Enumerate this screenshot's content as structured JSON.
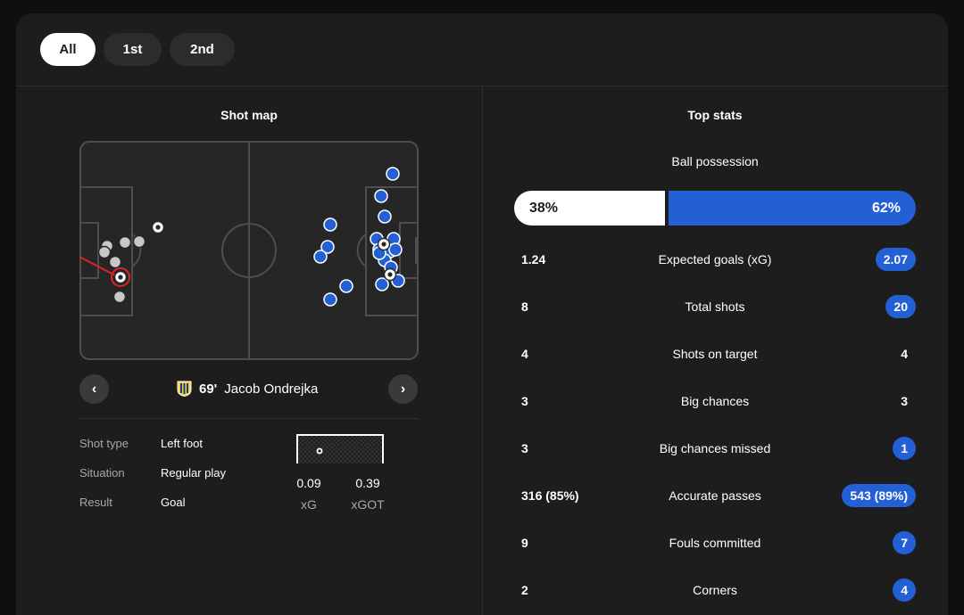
{
  "tabs": [
    {
      "label": "All",
      "active": true
    },
    {
      "label": "1st",
      "active": false
    },
    {
      "label": "2nd",
      "active": false
    }
  ],
  "shot_map": {
    "title": "Shot map",
    "selected_shot": {
      "minute": "69'",
      "player": "Jacob Ondrejka",
      "details": [
        {
          "label": "Shot type",
          "value": "Left foot"
        },
        {
          "label": "Situation",
          "value": "Regular play"
        },
        {
          "label": "Result",
          "value": "Goal"
        }
      ],
      "xg": "0.09",
      "xg_label": "xG",
      "xgot": "0.39",
      "xgot_label": "xGOT"
    },
    "colors": {
      "home_shot": "#c8c8c8",
      "away_shot": "#2360d6",
      "selected": "#e0202a",
      "pitch": "#262626",
      "lines": "#4e4e4e"
    }
  },
  "top_stats": {
    "title": "Top stats",
    "possession": {
      "label": "Ball possession",
      "home": "38%",
      "away": "62%",
      "home_value": 38,
      "away_value": 62
    },
    "rows": [
      {
        "label": "Expected goals (xG)",
        "home": "1.24",
        "away": "2.07",
        "away_highlight": true
      },
      {
        "label": "Total shots",
        "home": "8",
        "away": "20",
        "away_highlight": true
      },
      {
        "label": "Shots on target",
        "home": "4",
        "away": "4",
        "away_highlight": false
      },
      {
        "label": "Big chances",
        "home": "3",
        "away": "3",
        "away_highlight": false
      },
      {
        "label": "Big chances missed",
        "home": "3",
        "away": "1",
        "away_highlight": true
      },
      {
        "label": "Accurate passes",
        "home": "316 (85%)",
        "away": "543 (89%)",
        "away_highlight": true
      },
      {
        "label": "Fouls committed",
        "home": "9",
        "away": "7",
        "away_highlight": true
      },
      {
        "label": "Corners",
        "home": "2",
        "away": "4",
        "away_highlight": true
      }
    ]
  }
}
